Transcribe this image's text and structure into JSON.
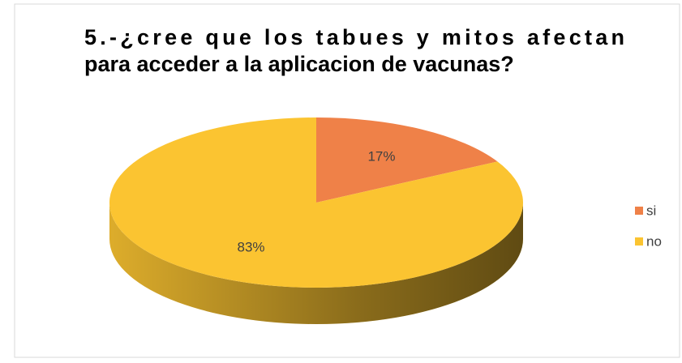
{
  "chart_data": {
    "type": "pie",
    "title": [
      "5.-¿cree que los tabues y mitos afectan",
      "para acceder a la aplicacion de vacunas?"
    ],
    "categories": [
      "si",
      "no"
    ],
    "values": [
      17,
      83
    ],
    "value_labels": [
      "17%",
      "83%"
    ],
    "colors": [
      "#ef8148",
      "#fbc431"
    ],
    "legend": "right"
  }
}
